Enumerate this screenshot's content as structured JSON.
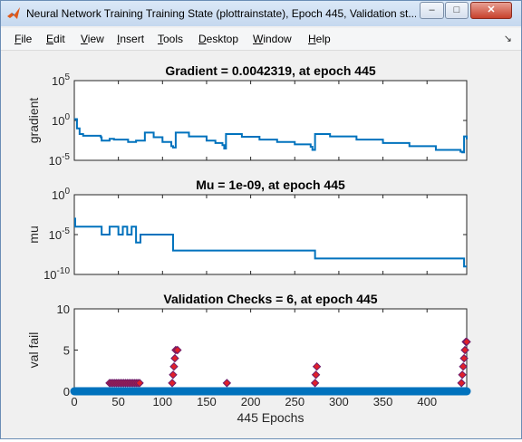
{
  "window": {
    "title": "Neural Network Training Training State (plottrainstate), Epoch 445, Validation st...",
    "minimize_glyph": "–",
    "maximize_glyph": "□",
    "close_glyph": "✕",
    "icon": "matlab-icon"
  },
  "menu": {
    "items": [
      {
        "key": "F",
        "rest": "ile"
      },
      {
        "key": "E",
        "rest": "dit"
      },
      {
        "key": "V",
        "rest": "iew"
      },
      {
        "key": "I",
        "rest": "nsert"
      },
      {
        "key": "T",
        "rest": "ools"
      },
      {
        "key": "D",
        "rest": "esktop"
      },
      {
        "key": "W",
        "rest": "indow"
      },
      {
        "key": "H",
        "rest": "elp"
      }
    ],
    "dock_glyph": "↘"
  },
  "colors": {
    "line": "#0072bd",
    "marker": "#e0202a",
    "marker_edge": "#6a1b6a"
  },
  "chart_data": [
    {
      "type": "line",
      "title": "Gradient = 0.0042319, at epoch 445",
      "ylabel": "gradient",
      "xlabel": "",
      "yscale": "log",
      "ylim": [
        1e-05,
        100000
      ],
      "yticks": [
        {
          "v": 1e-05,
          "base": "10",
          "exp": "-5"
        },
        {
          "v": 1,
          "base": "10",
          "exp": "0"
        },
        {
          "v": 100000,
          "base": "10",
          "exp": "5"
        }
      ],
      "xlim": [
        0,
        445
      ],
      "x": [
        0,
        3,
        6,
        10,
        20,
        30,
        31,
        40,
        45,
        60,
        61,
        70,
        80,
        90,
        100,
        110,
        112,
        115,
        130,
        150,
        160,
        168,
        170,
        172,
        190,
        210,
        230,
        250,
        268,
        270,
        273,
        290,
        320,
        350,
        380,
        410,
        438,
        440,
        442,
        445
      ],
      "y": [
        1.5,
        0.1,
        0.02,
        0.012,
        0.012,
        0.008,
        0.003,
        0.005,
        0.004,
        0.004,
        0.002,
        0.003,
        0.03,
        0.008,
        0.002,
        0.0006,
        0.0004,
        0.03,
        0.01,
        0.003,
        0.0015,
        0.0008,
        0.0003,
        0.02,
        0.009,
        0.004,
        0.002,
        0.001,
        0.0005,
        0.0002,
        0.02,
        0.01,
        0.004,
        0.0015,
        0.0006,
        0.0002,
        0.00012,
        0.0001,
        0.01,
        0.0042319
      ]
    },
    {
      "type": "line",
      "title": "Mu = 1e-09, at epoch 445",
      "ylabel": "mu",
      "xlabel": "",
      "yscale": "log",
      "ylim": [
        1e-10,
        1
      ],
      "yticks": [
        {
          "v": 1e-10,
          "base": "10",
          "exp": "-10"
        },
        {
          "v": 1e-05,
          "base": "10",
          "exp": "-5"
        },
        {
          "v": 1,
          "base": "10",
          "exp": "0"
        }
      ],
      "xlim": [
        0,
        445
      ],
      "x": [
        0,
        1,
        2,
        4,
        30,
        31,
        40,
        50,
        55,
        60,
        65,
        70,
        75,
        80,
        100,
        110,
        112,
        270,
        273,
        440,
        442,
        445
      ],
      "y": [
        0.001,
        0.0001,
        0.0001,
        0.0001,
        0.0001,
        1e-05,
        0.0001,
        1e-05,
        0.0001,
        1e-05,
        0.0001,
        1e-06,
        1e-05,
        1e-05,
        1e-05,
        1e-05,
        1e-07,
        1e-07,
        1e-08,
        1e-08,
        1e-09,
        1e-09
      ]
    },
    {
      "type": "scatter",
      "title": "Validation Checks = 6, at epoch 445",
      "ylabel": "val fail",
      "xlabel": "445 Epochs",
      "ylim": [
        0,
        10
      ],
      "yticks": [
        0,
        5,
        10
      ],
      "xlim": [
        0,
        445
      ],
      "xticks": [
        0,
        50,
        100,
        150,
        200,
        250,
        300,
        350,
        400
      ],
      "x": [
        40,
        42,
        44,
        46,
        48,
        50,
        52,
        54,
        56,
        58,
        60,
        62,
        64,
        66,
        68,
        70,
        72,
        74,
        110,
        111,
        112,
        113,
        114,
        115,
        116,
        117,
        172,
        173,
        272,
        273,
        274,
        275,
        276,
        439,
        440,
        441,
        442,
        443,
        444,
        445
      ],
      "y": [
        1,
        1,
        1,
        1,
        1,
        1,
        1,
        1,
        1,
        1,
        1,
        1,
        1,
        1,
        1,
        1,
        1,
        1,
        0,
        1,
        2,
        3,
        4,
        5,
        0,
        5,
        0,
        1,
        0,
        1,
        2,
        3,
        0,
        1,
        2,
        3,
        4,
        5,
        6,
        6
      ]
    }
  ]
}
